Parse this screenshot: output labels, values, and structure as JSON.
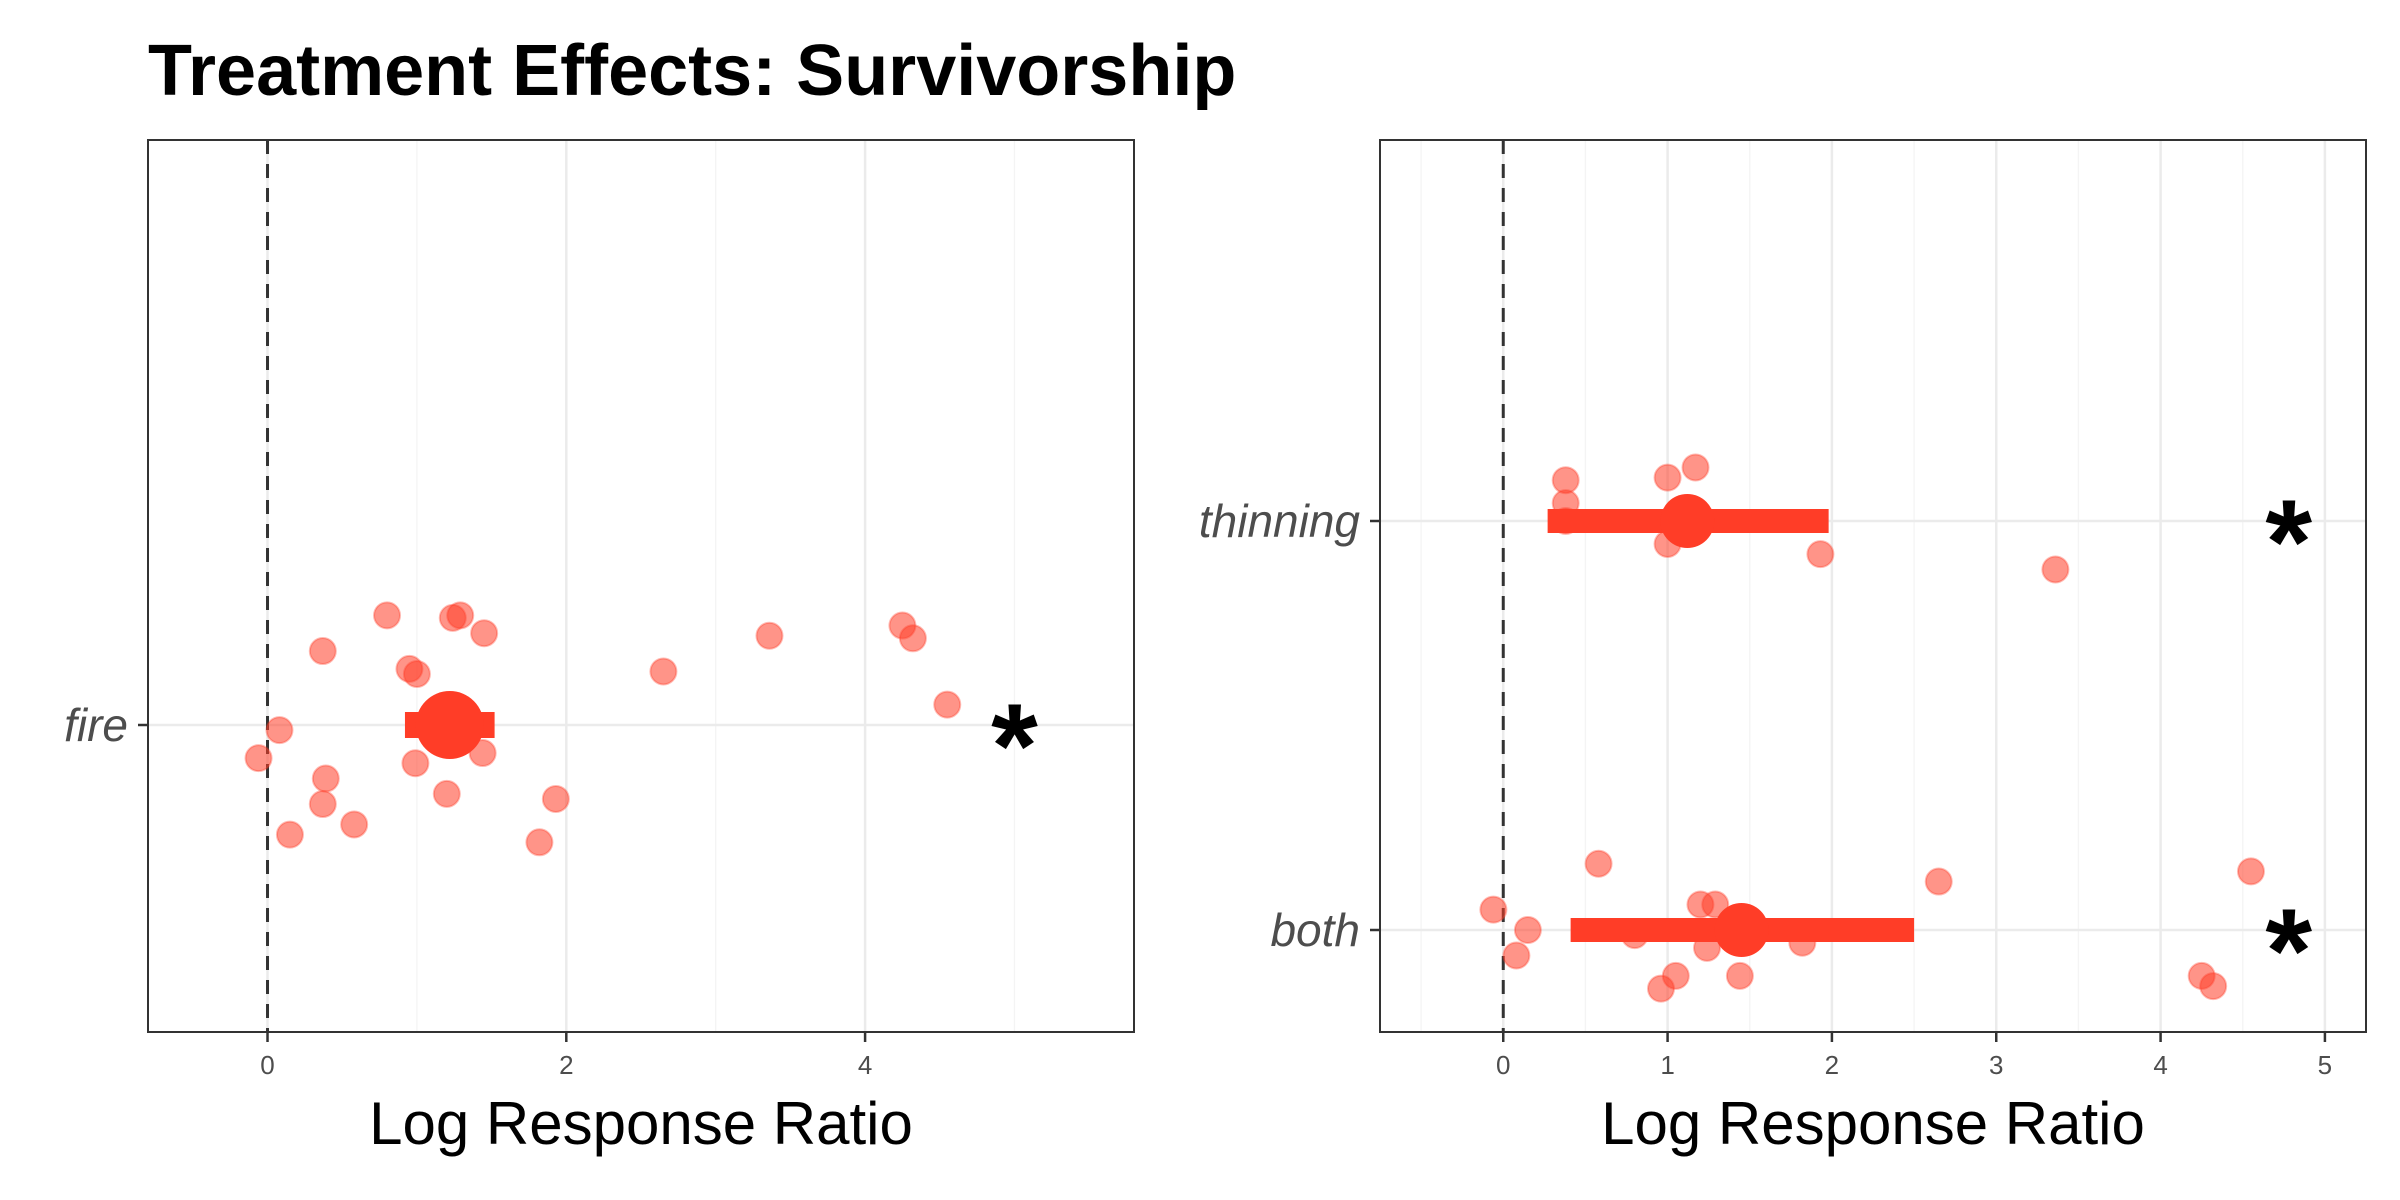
{
  "title": "Treatment Effects: Survivorship",
  "colors": {
    "point": "#FF3D27",
    "point_fill_opacity": 0.55,
    "estimate": "#FF3D27",
    "grid": "#EBEBEB",
    "frame": "#333333",
    "reference_line": "#333333"
  },
  "chart_data": [
    {
      "type": "scatter",
      "xlabel": "Log Response Ratio",
      "xlim": [
        -0.8,
        5.8
      ],
      "xticks": [
        0,
        2,
        4
      ],
      "reference_line_x": 0,
      "grid": true,
      "categories": [
        "fire"
      ],
      "groups": [
        {
          "category": "fire",
          "estimate": 1.22,
          "ci": [
            0.92,
            1.52
          ],
          "significance": "*",
          "points": [
            {
              "x": 0.08,
              "y": -0.02
            },
            {
              "x": -0.06,
              "y": -0.13
            },
            {
              "x": 0.15,
              "y": -0.43
            },
            {
              "x": 0.37,
              "y": -0.31
            },
            {
              "x": 0.39,
              "y": -0.21
            },
            {
              "x": 0.58,
              "y": -0.39
            },
            {
              "x": 0.37,
              "y": 0.29
            },
            {
              "x": 0.8,
              "y": 0.43
            },
            {
              "x": 0.95,
              "y": 0.22
            },
            {
              "x": 1.0,
              "y": 0.2
            },
            {
              "x": 1.24,
              "y": 0.42
            },
            {
              "x": 1.29,
              "y": 0.43
            },
            {
              "x": 1.45,
              "y": 0.36
            },
            {
              "x": 0.99,
              "y": -0.15
            },
            {
              "x": 1.44,
              "y": -0.11
            },
            {
              "x": 1.2,
              "y": -0.27
            },
            {
              "x": 1.93,
              "y": -0.29
            },
            {
              "x": 1.82,
              "y": -0.46
            },
            {
              "x": 2.65,
              "y": 0.21
            },
            {
              "x": 3.36,
              "y": 0.35
            },
            {
              "x": 4.25,
              "y": 0.39
            },
            {
              "x": 4.32,
              "y": 0.34
            },
            {
              "x": 4.55,
              "y": 0.08
            }
          ]
        }
      ]
    },
    {
      "type": "scatter",
      "xlabel": "Log Response Ratio",
      "xlim": [
        -0.75,
        5.25
      ],
      "xticks": [
        0,
        1,
        2,
        3,
        4,
        5
      ],
      "reference_line_x": 0,
      "grid": true,
      "categories": [
        "thinning",
        "both"
      ],
      "groups": [
        {
          "category": "thinning",
          "estimate": 1.12,
          "ci": [
            0.27,
            1.98
          ],
          "significance": "*",
          "points": [
            {
              "x": 0.38,
              "y": 0.16
            },
            {
              "x": 0.38,
              "y": 0.07
            },
            {
              "x": 0.38,
              "y": 0.0
            },
            {
              "x": 1.0,
              "y": 0.17
            },
            {
              "x": 1.17,
              "y": 0.21
            },
            {
              "x": 1.0,
              "y": -0.09
            },
            {
              "x": 1.93,
              "y": -0.13
            },
            {
              "x": 3.36,
              "y": -0.19
            }
          ]
        },
        {
          "category": "both",
          "estimate": 1.45,
          "ci": [
            0.41,
            2.5
          ],
          "significance": "*",
          "points": [
            {
              "x": -0.06,
              "y": 0.08
            },
            {
              "x": 0.15,
              "y": 0.0
            },
            {
              "x": 0.08,
              "y": -0.1
            },
            {
              "x": 0.58,
              "y": 0.26
            },
            {
              "x": 0.8,
              "y": -0.02
            },
            {
              "x": 1.2,
              "y": 0.1
            },
            {
              "x": 1.29,
              "y": 0.1
            },
            {
              "x": 1.24,
              "y": -0.07
            },
            {
              "x": 1.82,
              "y": -0.05
            },
            {
              "x": 1.05,
              "y": -0.18
            },
            {
              "x": 0.96,
              "y": -0.23
            },
            {
              "x": 1.44,
              "y": -0.18
            },
            {
              "x": 2.65,
              "y": 0.19
            },
            {
              "x": 4.55,
              "y": 0.23
            },
            {
              "x": 4.25,
              "y": -0.18
            },
            {
              "x": 4.32,
              "y": -0.22
            }
          ]
        }
      ]
    }
  ]
}
